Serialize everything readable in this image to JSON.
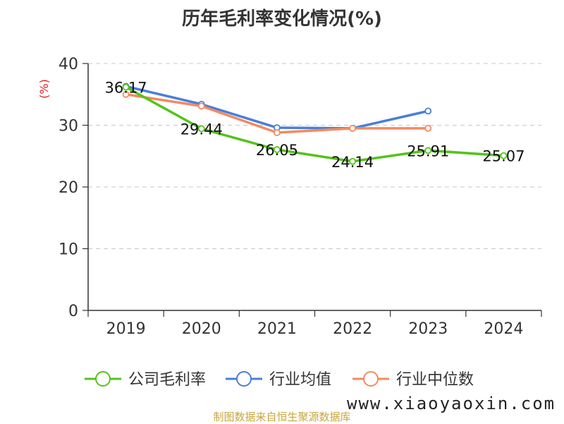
{
  "title": "历年毛利率变化情况(%)",
  "footer": "制图数据来自恒生聚源数据库",
  "watermark": "www.xiaoyaoxin.com",
  "chart_data": {
    "type": "line",
    "title": "历年毛利率变化情况(%)",
    "ylabel": "(%)",
    "xlabel": "",
    "categories": [
      "2019",
      "2020",
      "2021",
      "2022",
      "2023",
      "2024"
    ],
    "ylim": [
      0,
      40
    ],
    "yticks": [
      0,
      10,
      20,
      30,
      40
    ],
    "grid": true,
    "legend_position": "bottom",
    "series": [
      {
        "name": "公司毛利率",
        "color": "#52c41a",
        "values": [
          36.17,
          29.44,
          26.05,
          24.14,
          25.91,
          25.07
        ],
        "labels": true
      },
      {
        "name": "行业均值",
        "color": "#4a7fd9",
        "values": [
          36.3,
          33.4,
          29.6,
          29.5,
          32.3,
          null
        ],
        "labels": false
      },
      {
        "name": "行业中位数",
        "color": "#f5895f",
        "values": [
          35.0,
          33.1,
          28.8,
          29.5,
          29.5,
          null
        ],
        "labels": false
      }
    ]
  }
}
